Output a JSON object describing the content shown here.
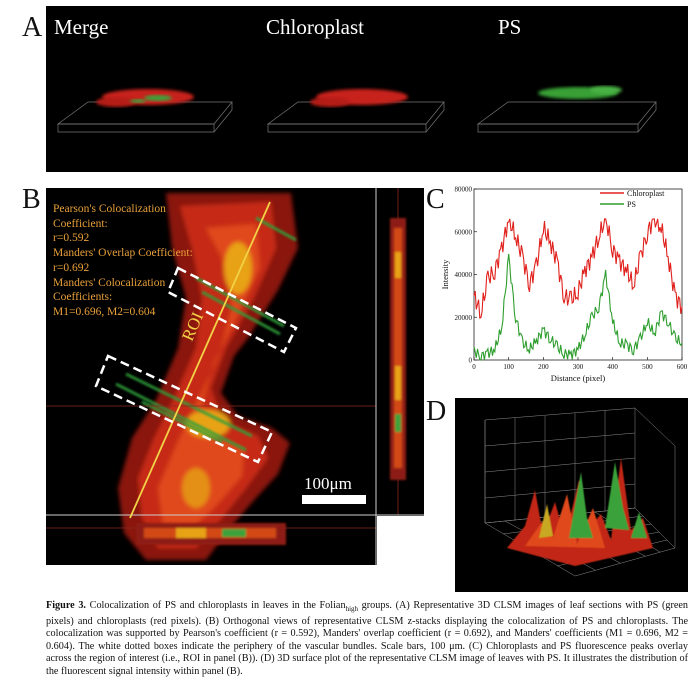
{
  "figure": {
    "panel_labels": {
      "a": "A",
      "b": "B",
      "c": "C",
      "d": "D"
    },
    "panel_a": {
      "titles": [
        "Merge",
        "Chloroplast",
        "PS"
      ]
    },
    "panel_b": {
      "stats_lines": [
        "Pearson's Colocalization",
        "Coefficient:",
        "r=0.592",
        "Manders' Overlap Coefficient:",
        "r=0.692",
        "Manders' Colocalization",
        "Coefficients:",
        "M1=0.696, M2=0.604"
      ],
      "roi_label": "ROI",
      "scale_label": "100μm"
    },
    "caption": {
      "figure_no": "Figure 3.",
      "text_before_sub": " Colocalization of PS and chloroplasts in leaves in the Folian",
      "subscript": "high",
      "text_after_sub": " groups. (A) Representative 3D CLSM images of leaf sections with PS (green pixels) and chloroplasts (red pixels). (B) Orthogonal views of representative CLSM z-stacks displaying the colocalization of PS and chloroplasts. The colocalization was supported by Pearson's coefficient (r = 0.592), Manders' overlap coefficient (r = 0.692), and Manders' coefficients (M1 = 0.696, M2 = 0.604). The white dotted boxes indicate the periphery of the vascular bundles. Scale bars, 100 μm. (C) Chloroplasts and PS fluorescence peaks overlay across the region of interest (i.e., ROI in panel (B)). (D) 3D surface plot of the representative CLSM image of leaves with PS. It illustrates the distribution of the fluorescent signal intensity within panel (B)."
    }
  },
  "chart_data": {
    "type": "line",
    "title": "",
    "xlabel": "Distance (pixel)",
    "ylabel": "Intensity",
    "xlim": [
      0,
      600
    ],
    "ylim": [
      0,
      80000
    ],
    "xticks": [
      "0",
      "100",
      "200",
      "300",
      "400",
      "500",
      "600"
    ],
    "yticks": [
      "0",
      "20000",
      "40000",
      "60000",
      "80000"
    ],
    "legend_position": "top-right",
    "x": [
      0,
      20,
      40,
      60,
      80,
      100,
      120,
      140,
      160,
      180,
      200,
      220,
      240,
      260,
      280,
      300,
      320,
      340,
      360,
      380,
      400,
      420,
      440,
      460,
      480,
      500,
      520,
      540,
      560,
      580,
      600
    ],
    "series": [
      {
        "name": "Chloroplast",
        "color": "#e0201c",
        "values": [
          30000,
          22000,
          38000,
          42000,
          52000,
          66000,
          58000,
          48000,
          36000,
          44000,
          62000,
          55000,
          46000,
          30000,
          28000,
          32000,
          42000,
          48000,
          58000,
          66000,
          52000,
          46000,
          42000,
          35000,
          48000,
          60000,
          66000,
          62000,
          48000,
          30000,
          25000
        ]
      },
      {
        "name": "PS",
        "color": "#2e9e2e",
        "values": [
          4000,
          2000,
          3000,
          5000,
          15000,
          48000,
          20000,
          8000,
          5000,
          9000,
          14000,
          10000,
          6000,
          3000,
          2500,
          5000,
          12000,
          20000,
          25000,
          40000,
          18000,
          8000,
          7000,
          5000,
          10000,
          18000,
          12000,
          22000,
          18000,
          10000,
          8000
        ]
      }
    ]
  }
}
